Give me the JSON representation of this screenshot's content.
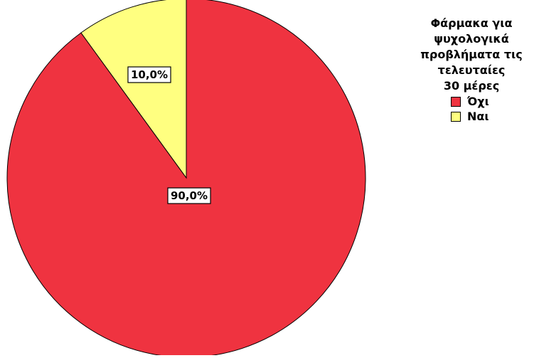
{
  "chart_data": {
    "type": "pie",
    "title": "",
    "legend": {
      "title": "Φάρμακα για ψυχολογικά προβλήματα τις τελευταίες 30 μέρες",
      "placement": "right"
    },
    "slices": [
      {
        "label": "Όχι",
        "value": 90.0,
        "display": "90,0%",
        "color": "#ef3340"
      },
      {
        "label": "Ναι",
        "value": 10.0,
        "display": "10,0%",
        "color": "#ffff80"
      }
    ],
    "start_angle": "12 o'clock",
    "direction": "counterclockwise"
  }
}
